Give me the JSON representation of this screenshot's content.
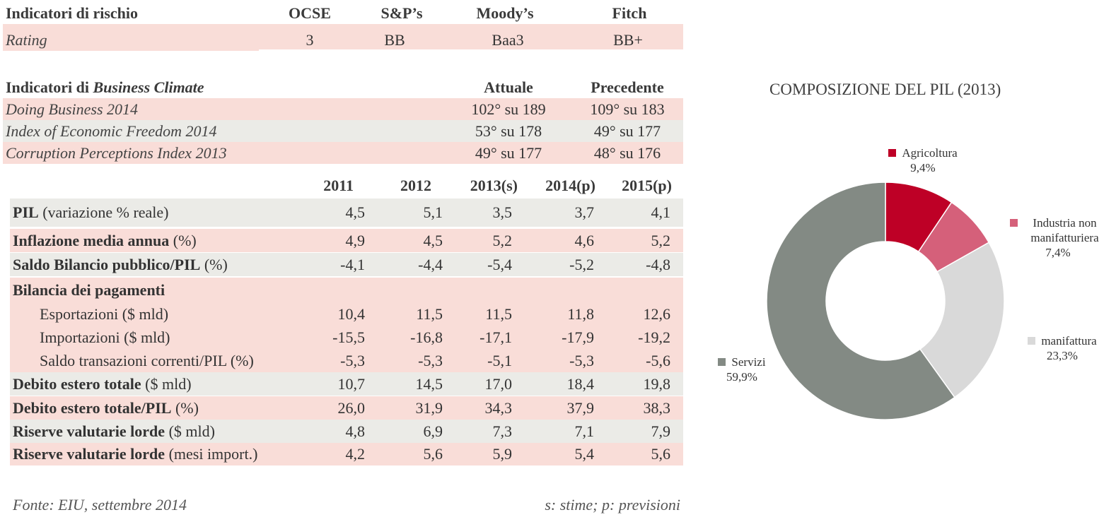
{
  "risk": {
    "header": [
      "Indicatori di rischio",
      "OCSE",
      "S&P’s",
      "Moody’s",
      "Fitch"
    ],
    "row_label": "Rating",
    "values": [
      "3",
      "BB",
      "Baa3",
      "BB+"
    ]
  },
  "business_climate": {
    "header_prefix": "Indicatori di ",
    "header_italic": "Business Climate",
    "col_current": "Attuale",
    "col_previous": "Precedente",
    "rows": [
      {
        "label": "Doing Business 2014",
        "current": "102° su 189",
        "previous": "109° su 183"
      },
      {
        "label": "Index of Economic Freedom 2014",
        "current": "53° su 178",
        "previous": "49° su 177"
      },
      {
        "label": "Corruption Perceptions Index 2013",
        "current": "49° su 177",
        "previous": "48° su 176"
      }
    ]
  },
  "macro": {
    "years": [
      "2011",
      "2012",
      "2013(s)",
      "2014(p)",
      "2015(p)"
    ],
    "rows": [
      {
        "bold": "PIL",
        "rest": " (variazione % reale)",
        "values": [
          "4,5",
          "5,1",
          "3,5",
          "3,7",
          "4,1"
        ]
      },
      {
        "bold": "Inflazione media annua",
        "rest": " (%)",
        "values": [
          "4,9",
          "4,5",
          "5,2",
          "4,6",
          "5,2"
        ]
      },
      {
        "bold": "Saldo Bilancio pubblico/PIL",
        "rest": " (%)",
        "values": [
          "-4,1",
          "-4,4",
          "-5,4",
          "-5,2",
          "-4,8"
        ]
      },
      {
        "bold": "Bilancia dei pagamenti",
        "rest": "",
        "values": []
      },
      {
        "bold": "",
        "rest": "Esportazioni ($ mld)",
        "values": [
          "10,4",
          "11,5",
          "11,5",
          "11,8",
          "12,6"
        ]
      },
      {
        "bold": "",
        "rest": "Importazioni ($ mld)",
        "values": [
          "-15,5",
          "-16,8",
          "-17,1",
          "-17,9",
          "-19,2"
        ]
      },
      {
        "bold": "",
        "rest": "Saldo transazioni correnti/PIL (%)",
        "values": [
          "-5,3",
          "-5,3",
          "-5,1",
          "-5,3",
          "-5,6"
        ]
      },
      {
        "bold": "Debito estero totale",
        "rest": " ($ mld)",
        "values": [
          "10,7",
          "14,5",
          "17,0",
          "18,4",
          "19,8"
        ]
      },
      {
        "bold": "Debito estero totale/PIL",
        "rest": " (%)",
        "values": [
          "26,0",
          "31,9",
          "34,3",
          "37,9",
          "38,3"
        ]
      },
      {
        "bold": "Riserve valutarie lorde",
        "rest": " ($ mld)",
        "values": [
          "4,8",
          "6,9",
          "7,3",
          "7,1",
          "7,9"
        ]
      },
      {
        "bold": "Riserve valutarie lorde",
        "rest": " (mesi import.)",
        "values": [
          "4,2",
          "5,6",
          "5,9",
          "5,4",
          "5,6"
        ]
      }
    ]
  },
  "footer": {
    "source": "Fonte: EIU, settembre 2014",
    "note": "s: stime; p: previsioni"
  },
  "chart_data": {
    "type": "pie",
    "title": "COMPOSIZIONE DEL PIL (2013)",
    "donut": true,
    "slices": [
      {
        "label": "Agricoltura",
        "value": 9.4,
        "display": "9,4%",
        "color": "#be0026"
      },
      {
        "label": "Industria non manifatturiera",
        "value": 7.4,
        "display": "7,4%",
        "color": "#d5607a"
      },
      {
        "label": "manifattura",
        "value": 23.3,
        "display": "23,3%",
        "color": "#d9d9d9"
      },
      {
        "label": "Servizi",
        "value": 59.9,
        "display": "59,9%",
        "color": "#838a84"
      }
    ]
  }
}
